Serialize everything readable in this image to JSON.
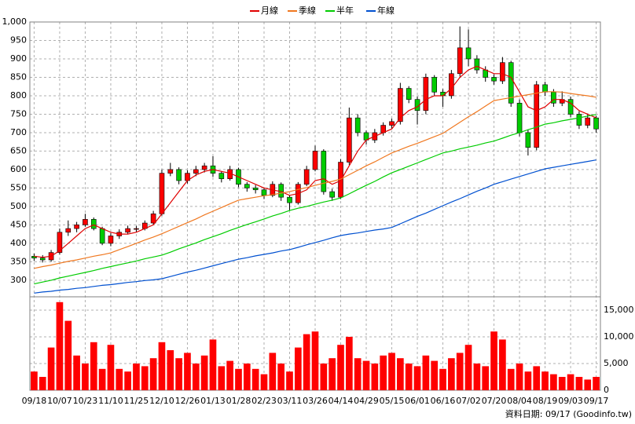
{
  "chart_data": {
    "type": "candlestick",
    "categories": [
      "09/18",
      null,
      null,
      "10/07",
      null,
      null,
      "10/23",
      null,
      null,
      "11/10",
      null,
      null,
      "11/25",
      null,
      null,
      "12/10",
      null,
      null,
      "12/26",
      null,
      null,
      "01/13",
      null,
      null,
      "01/28",
      null,
      null,
      "02/23",
      null,
      null,
      "03/11",
      null,
      null,
      "03/26",
      null,
      null,
      "04/14",
      null,
      null,
      "04/29",
      null,
      null,
      "05/15",
      null,
      null,
      "06/01",
      null,
      null,
      "06/16",
      null,
      null,
      "07/02",
      null,
      null,
      "07/20",
      null,
      null,
      "08/04",
      null,
      null,
      "08/19",
      null,
      null,
      "09/03",
      null,
      null,
      "09/17"
    ],
    "ohlc": [
      [
        365,
        372,
        352,
        360
      ],
      [
        360,
        368,
        348,
        355
      ],
      [
        355,
        382,
        350,
        375
      ],
      [
        375,
        440,
        370,
        430
      ],
      [
        430,
        462,
        420,
        440
      ],
      [
        440,
        458,
        430,
        450
      ],
      [
        450,
        480,
        445,
        465
      ],
      [
        465,
        470,
        435,
        440
      ],
      [
        440,
        445,
        395,
        400
      ],
      [
        400,
        428,
        392,
        420
      ],
      [
        420,
        438,
        412,
        430
      ],
      [
        430,
        448,
        424,
        440
      ],
      [
        440,
        447,
        430,
        440
      ],
      [
        440,
        462,
        435,
        455
      ],
      [
        455,
        488,
        450,
        480
      ],
      [
        480,
        600,
        475,
        590
      ],
      [
        590,
        618,
        582,
        600
      ],
      [
        600,
        606,
        560,
        570
      ],
      [
        570,
        598,
        562,
        590
      ],
      [
        590,
        610,
        582,
        600
      ],
      [
        600,
        618,
        592,
        610
      ],
      [
        610,
        636,
        580,
        590
      ],
      [
        590,
        596,
        565,
        575
      ],
      [
        575,
        610,
        570,
        600
      ],
      [
        600,
        605,
        552,
        560
      ],
      [
        560,
        566,
        540,
        550
      ],
      [
        550,
        558,
        535,
        545
      ],
      [
        545,
        550,
        520,
        530
      ],
      [
        530,
        568,
        525,
        560
      ],
      [
        560,
        565,
        515,
        525
      ],
      [
        525,
        530,
        490,
        510
      ],
      [
        510,
        566,
        505,
        560
      ],
      [
        560,
        610,
        555,
        600
      ],
      [
        600,
        665,
        595,
        650
      ],
      [
        650,
        655,
        532,
        540
      ],
      [
        540,
        548,
        515,
        525
      ],
      [
        525,
        628,
        520,
        620
      ],
      [
        620,
        768,
        612,
        740
      ],
      [
        740,
        750,
        690,
        700
      ],
      [
        700,
        706,
        668,
        680
      ],
      [
        680,
        710,
        672,
        700
      ],
      [
        700,
        728,
        692,
        720
      ],
      [
        720,
        738,
        710,
        730
      ],
      [
        730,
        835,
        722,
        820
      ],
      [
        820,
        826,
        780,
        790
      ],
      [
        790,
        798,
        722,
        760
      ],
      [
        760,
        860,
        750,
        850
      ],
      [
        850,
        856,
        800,
        810
      ],
      [
        810,
        818,
        770,
        800
      ],
      [
        800,
        870,
        792,
        860
      ],
      [
        860,
        988,
        852,
        930
      ],
      [
        930,
        980,
        880,
        900
      ],
      [
        900,
        910,
        860,
        870
      ],
      [
        870,
        880,
        838,
        850
      ],
      [
        850,
        858,
        830,
        840
      ],
      [
        840,
        905,
        832,
        890
      ],
      [
        890,
        895,
        770,
        780
      ],
      [
        780,
        790,
        690,
        700
      ],
      [
        700,
        708,
        638,
        660
      ],
      [
        660,
        840,
        652,
        830
      ],
      [
        830,
        838,
        800,
        810
      ],
      [
        810,
        818,
        770,
        780
      ],
      [
        780,
        812,
        772,
        790
      ],
      [
        790,
        798,
        742,
        750
      ],
      [
        750,
        758,
        710,
        720
      ],
      [
        720,
        752,
        712,
        740
      ],
      [
        740,
        746,
        700,
        710
      ]
    ],
    "up_color": "#ff0000",
    "down_color": "#00cc00",
    "volume": [
      3500,
      2500,
      8000,
      16500,
      13000,
      6500,
      5000,
      9000,
      4000,
      8500,
      4000,
      3500,
      5000,
      4500,
      6000,
      9000,
      7500,
      6000,
      7000,
      5000,
      6500,
      9500,
      4500,
      5500,
      4000,
      5000,
      4000,
      3000,
      7000,
      5000,
      3500,
      8000,
      10500,
      11000,
      5000,
      6000,
      8500,
      10000,
      6000,
      5500,
      5000,
      6500,
      7000,
      6000,
      5000,
      4500,
      6500,
      5500,
      4000,
      6000,
      7000,
      8500,
      5000,
      4500,
      11000,
      9500,
      4000,
      5000,
      3500,
      4500,
      3500,
      3000,
      2500,
      3000,
      2500,
      2000,
      2500
    ],
    "volume_color": "#ff0000",
    "lines": [
      {
        "name": "月線",
        "color": "#e00000",
        "values": [
          365,
          362,
          365,
          380,
          400,
          420,
          440,
          450,
          440,
          430,
          425,
          425,
          430,
          440,
          450,
          480,
          510,
          540,
          570,
          585,
          595,
          600,
          595,
          590,
          580,
          570,
          560,
          550,
          545,
          540,
          530,
          535,
          545,
          570,
          575,
          560,
          570,
          610,
          650,
          680,
          690,
          700,
          710,
          740,
          760,
          770,
          790,
          800,
          800,
          820,
          850,
          870,
          880,
          870,
          860,
          860,
          850,
          810,
          770,
          760,
          770,
          790,
          790,
          780,
          760,
          750,
          740
        ]
      },
      {
        "name": "季線",
        "color": "#f07820",
        "values": [
          332,
          337,
          341,
          346,
          351,
          355,
          360,
          365,
          369,
          374,
          383,
          391,
          400,
          409,
          417,
          426,
          436,
          446,
          456,
          466,
          477,
          487,
          497,
          507,
          517,
          521,
          525,
          529,
          532,
          536,
          540,
          546,
          551,
          557,
          563,
          568,
          574,
          586,
          598,
          610,
          621,
          633,
          645,
          654,
          663,
          671,
          680,
          689,
          698,
          713,
          728,
          743,
          757,
          772,
          787,
          791,
          795,
          799,
          803,
          807,
          811,
          811,
          810,
          806,
          803,
          800,
          796
        ]
      },
      {
        "name": "半年",
        "color": "#00cc00",
        "values": [
          290,
          295,
          300,
          306,
          311,
          316,
          321,
          326,
          332,
          337,
          342,
          347,
          352,
          358,
          363,
          368,
          376,
          385,
          393,
          401,
          410,
          418,
          426,
          435,
          443,
          451,
          458,
          466,
          474,
          481,
          489,
          495,
          500,
          506,
          512,
          517,
          523,
          534,
          546,
          557,
          568,
          580,
          591,
          600,
          609,
          618,
          627,
          636,
          645,
          650,
          656,
          661,
          666,
          672,
          677,
          685,
          693,
          700,
          708,
          715,
          723,
          727,
          732,
          736,
          740,
          745,
          749
        ]
      },
      {
        "name": "年線",
        "color": "#0050d0",
        "values": [
          265,
          268,
          270,
          273,
          275,
          278,
          280,
          283,
          286,
          288,
          291,
          294,
          296,
          299,
          301,
          304,
          310,
          316,
          322,
          327,
          333,
          339,
          345,
          351,
          357,
          361,
          366,
          370,
          374,
          379,
          383,
          389,
          396,
          402,
          408,
          415,
          421,
          425,
          428,
          432,
          436,
          439,
          443,
          453,
          463,
          473,
          482,
          492,
          502,
          512,
          521,
          531,
          541,
          550,
          560,
          567,
          574,
          581,
          588,
          595,
          602,
          606,
          610,
          614,
          618,
          622,
          626
        ]
      }
    ],
    "ylim": [
      255,
      1000
    ],
    "yticks": [
      300,
      350,
      400,
      450,
      500,
      550,
      600,
      650,
      700,
      750,
      800,
      850,
      900,
      950,
      {
        "value": 1000,
        "label": "1,000"
      }
    ],
    "y2lim": [
      0,
      17500
    ],
    "y2ticks": [
      0,
      {
        "value": 5000,
        "label": "5,000"
      },
      {
        "value": 10000,
        "label": "10,000"
      },
      {
        "value": 15000,
        "label": "15,000"
      }
    ],
    "grid": true,
    "legend": "top",
    "footer": "資料日期: 09/17 (Goodinfo.tw)"
  }
}
